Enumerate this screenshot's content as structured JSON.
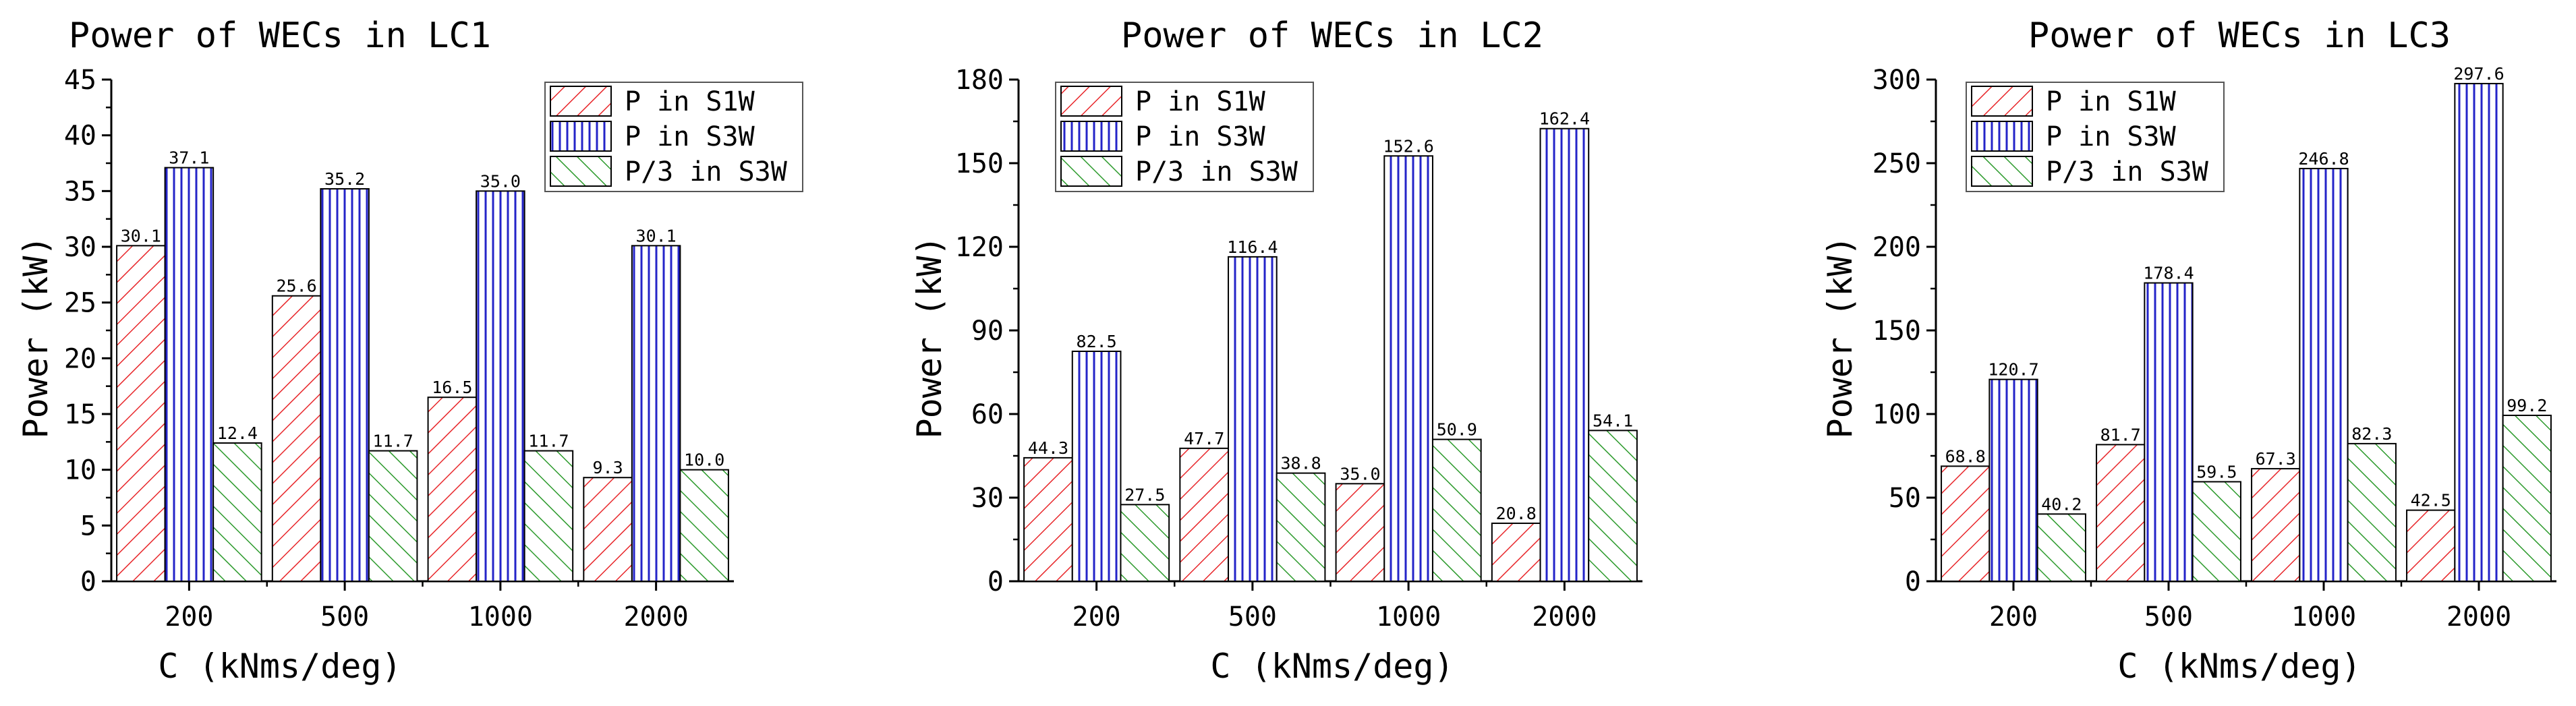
{
  "chart_data": [
    {
      "type": "bar",
      "title": "Power of WECs in LC1",
      "xlabel": "C (kNms/deg)",
      "ylabel": "Power (kW)",
      "categories": [
        "200",
        "500",
        "1000",
        "2000"
      ],
      "ylim": [
        0,
        45
      ],
      "yticks": [
        0,
        5,
        10,
        15,
        20,
        25,
        30,
        35,
        40,
        45
      ],
      "legend_position": "top-right",
      "series": [
        {
          "name": "P in S1W",
          "values": [
            30.1,
            25.6,
            16.5,
            9.3
          ],
          "labels": [
            "30.1",
            "25.6",
            "16.5",
            "9.3"
          ],
          "color": "#e8262a",
          "pattern": "diagonal-right"
        },
        {
          "name": "P in S3W",
          "values": [
            37.1,
            35.2,
            35.0,
            30.1
          ],
          "labels": [
            "37.1",
            "35.2",
            "35.0",
            "30.1"
          ],
          "color": "#2424c8",
          "pattern": "vertical"
        },
        {
          "name": "P/3 in S3W",
          "values": [
            12.4,
            11.7,
            11.7,
            10.0
          ],
          "labels": [
            "12.4",
            "11.7",
            "11.7",
            "10.0"
          ],
          "color": "#2c9a2c",
          "pattern": "diagonal-left"
        }
      ]
    },
    {
      "type": "bar",
      "title": "Power of WECs in LC2",
      "xlabel": "C (kNms/deg)",
      "ylabel": "Power (kW)",
      "categories": [
        "200",
        "500",
        "1000",
        "2000"
      ],
      "ylim": [
        0,
        180
      ],
      "yticks": [
        0,
        30,
        60,
        90,
        120,
        150,
        180
      ],
      "legend_position": "top-left",
      "series": [
        {
          "name": "P in S1W",
          "values": [
            44.3,
            47.7,
            35.0,
            20.8
          ],
          "labels": [
            "44.3",
            "47.7",
            "35.0",
            "20.8"
          ],
          "color": "#e8262a",
          "pattern": "diagonal-right"
        },
        {
          "name": "P in S3W",
          "values": [
            82.5,
            116.4,
            152.6,
            162.4
          ],
          "labels": [
            "82.5",
            "116.4",
            "152.6",
            "162.4"
          ],
          "color": "#2424c8",
          "pattern": "vertical"
        },
        {
          "name": "P/3 in S3W",
          "values": [
            27.5,
            38.8,
            50.9,
            54.1
          ],
          "labels": [
            "27.5",
            "38.8",
            "50.9",
            "54.1"
          ],
          "color": "#2c9a2c",
          "pattern": "diagonal-left"
        }
      ]
    },
    {
      "type": "bar",
      "title": "Power of WECs in LC3",
      "xlabel": "C (kNms/deg)",
      "ylabel": "Power (kW)",
      "categories": [
        "200",
        "500",
        "1000",
        "2000"
      ],
      "ylim": [
        0,
        300
      ],
      "yticks": [
        0,
        50,
        100,
        150,
        200,
        250,
        300
      ],
      "legend_position": "top-left",
      "series": [
        {
          "name": "P in S1W",
          "values": [
            68.8,
            81.7,
            67.3,
            42.5
          ],
          "labels": [
            "68.8",
            "81.7",
            "67.3",
            "42.5"
          ],
          "color": "#e8262a",
          "pattern": "diagonal-right"
        },
        {
          "name": "P in S3W",
          "values": [
            120.7,
            178.4,
            246.8,
            297.6
          ],
          "labels": [
            "120.7",
            "178.4",
            "246.8",
            "297.6"
          ],
          "color": "#2424c8",
          "pattern": "vertical"
        },
        {
          "name": "P/3 in S3W",
          "values": [
            40.2,
            59.5,
            82.3,
            99.2
          ],
          "labels": [
            "40.2",
            "59.5",
            "82.3",
            "99.2"
          ],
          "color": "#2c9a2c",
          "pattern": "diagonal-left"
        }
      ]
    }
  ]
}
